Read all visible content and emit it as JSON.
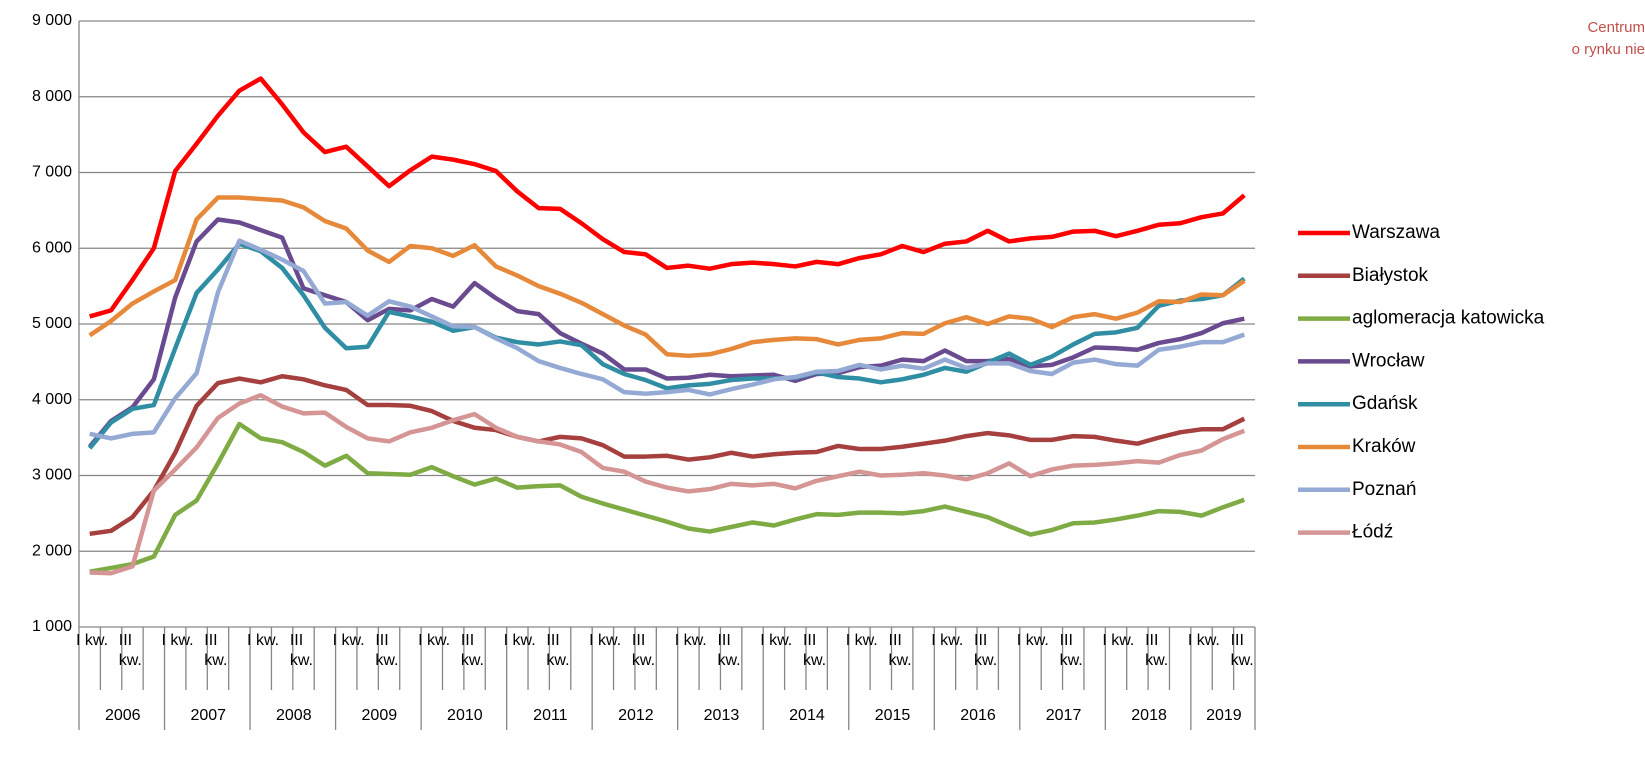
{
  "chart_data": {
    "type": "line",
    "categories": [
      "I kw.",
      null,
      "III kw.",
      null,
      "I kw.",
      null,
      "III kw.",
      null,
      "I kw.",
      null,
      "III kw.",
      null,
      "I kw.",
      null,
      "III kw.",
      null,
      "I kw.",
      null,
      "III kw.",
      null,
      "I kw.",
      null,
      "III kw.",
      null,
      "I kw.",
      null,
      "III kw.",
      null,
      "I kw.",
      null,
      "III kw.",
      null,
      "I kw.",
      null,
      "III kw.",
      null,
      "I kw.",
      null,
      "III kw.",
      null,
      "I kw.",
      null,
      "III kw.",
      null,
      "I kw.",
      null,
      "III kw.",
      null,
      "I kw.",
      null,
      "III kw.",
      null,
      "I kw.",
      null,
      "III kw."
    ],
    "years": [
      "2006",
      "2007",
      "2008",
      "2009",
      "2010",
      "2011",
      "2012",
      "2013",
      "2014",
      "2015",
      "2016",
      "2017",
      "2018",
      "2019"
    ],
    "ylim": [
      1000,
      9000
    ],
    "yticks": [
      {
        "value": 1000,
        "label": "1 000"
      },
      {
        "value": 2000,
        "label": "2 000"
      },
      {
        "value": 3000,
        "label": "3 000"
      },
      {
        "value": 4000,
        "label": "4 000"
      },
      {
        "value": 5000,
        "label": "5 000"
      },
      {
        "value": 6000,
        "label": "6 000"
      },
      {
        "value": 7000,
        "label": "7 000"
      },
      {
        "value": 8000,
        "label": "8 000"
      },
      {
        "value": 9000,
        "label": "9 000"
      }
    ],
    "grid": true,
    "legend": "right",
    "series": [
      {
        "name": "Warszawa",
        "color": "#ff0000",
        "values": [
          5100,
          5180,
          5580,
          6000,
          7020,
          7380,
          7750,
          8080,
          8240,
          7900,
          7530,
          7270,
          7340,
          7080,
          6820,
          7030,
          7210,
          7170,
          7110,
          7020,
          6750,
          6530,
          6520,
          6330,
          6120,
          5950,
          5920,
          5740,
          5770,
          5730,
          5790,
          5810,
          5790,
          5760,
          5820,
          5790,
          5870,
          5920,
          6030,
          5950,
          6060,
          6090,
          6230,
          6090,
          6130,
          6150,
          6220,
          6230,
          6160,
          6230,
          6310,
          6330,
          6410,
          6460,
          6700
        ]
      },
      {
        "name": "Białystok",
        "color": "#a5403e",
        "values": [
          2230,
          2270,
          2450,
          2800,
          3300,
          3920,
          4220,
          4280,
          4230,
          4310,
          4270,
          4190,
          4130,
          3930,
          3930,
          3920,
          3850,
          3720,
          3630,
          3600,
          3510,
          3450,
          3510,
          3490,
          3400,
          3250,
          3250,
          3260,
          3210,
          3240,
          3300,
          3250,
          3280,
          3300,
          3310,
          3390,
          3350,
          3350,
          3380,
          3420,
          3460,
          3520,
          3560,
          3530,
          3470,
          3470,
          3520,
          3510,
          3460,
          3420,
          3500,
          3570,
          3610,
          3610,
          3750
        ]
      },
      {
        "name": "aglomeracja katowicka",
        "color": "#7fab45",
        "values": [
          1730,
          1780,
          1830,
          1930,
          2480,
          2670,
          3160,
          3680,
          3490,
          3440,
          3310,
          3130,
          3260,
          3030,
          3020,
          3010,
          3110,
          2990,
          2880,
          2960,
          2840,
          2860,
          2870,
          2720,
          2630,
          2550,
          2470,
          2390,
          2300,
          2260,
          2320,
          2380,
          2340,
          2420,
          2490,
          2480,
          2510,
          2510,
          2500,
          2530,
          2590,
          2520,
          2450,
          2330,
          2220,
          2280,
          2370,
          2380,
          2420,
          2470,
          2530,
          2520,
          2470,
          2580,
          2680
        ]
      },
      {
        "name": "Wrocław",
        "color": "#6a4b8f",
        "values": [
          3380,
          3720,
          3900,
          4270,
          5350,
          6090,
          6380,
          6340,
          6240,
          6140,
          5470,
          5380,
          5290,
          5050,
          5200,
          5180,
          5330,
          5230,
          5540,
          5340,
          5170,
          5130,
          4880,
          4740,
          4610,
          4400,
          4400,
          4280,
          4290,
          4330,
          4310,
          4320,
          4330,
          4250,
          4340,
          4350,
          4430,
          4450,
          4530,
          4510,
          4650,
          4510,
          4510,
          4540,
          4440,
          4460,
          4560,
          4690,
          4680,
          4660,
          4750,
          4800,
          4880,
          5010,
          5070
        ]
      },
      {
        "name": "Gdańsk",
        "color": "#2f8ea3",
        "values": [
          3360,
          3700,
          3880,
          3930,
          4680,
          5410,
          5720,
          6060,
          5960,
          5740,
          5380,
          4950,
          4680,
          4700,
          5160,
          5100,
          5030,
          4910,
          4960,
          4820,
          4760,
          4730,
          4770,
          4720,
          4470,
          4340,
          4260,
          4150,
          4190,
          4210,
          4260,
          4280,
          4280,
          4290,
          4360,
          4300,
          4280,
          4230,
          4270,
          4330,
          4420,
          4370,
          4490,
          4610,
          4460,
          4570,
          4730,
          4870,
          4890,
          4950,
          5240,
          5310,
          5330,
          5380,
          5600
        ]
      },
      {
        "name": "Kraków",
        "color": "#e6893a",
        "values": [
          4850,
          5040,
          5270,
          5430,
          5580,
          6380,
          6670,
          6670,
          6650,
          6630,
          6540,
          6360,
          6260,
          5970,
          5820,
          6030,
          6000,
          5900,
          6040,
          5760,
          5640,
          5500,
          5400,
          5280,
          5130,
          4980,
          4860,
          4600,
          4580,
          4600,
          4670,
          4760,
          4790,
          4810,
          4800,
          4730,
          4790,
          4810,
          4880,
          4870,
          5010,
          5090,
          5000,
          5100,
          5070,
          4960,
          5090,
          5130,
          5070,
          5150,
          5300,
          5290,
          5390,
          5380,
          5570
        ]
      },
      {
        "name": "Poznań",
        "color": "#94a9d3",
        "values": [
          3550,
          3490,
          3550,
          3570,
          4020,
          4350,
          5420,
          6100,
          5980,
          5850,
          5700,
          5270,
          5290,
          5110,
          5300,
          5230,
          5100,
          4970,
          4960,
          4810,
          4680,
          4510,
          4420,
          4340,
          4270,
          4100,
          4080,
          4100,
          4130,
          4070,
          4140,
          4200,
          4270,
          4300,
          4370,
          4380,
          4460,
          4400,
          4450,
          4410,
          4530,
          4420,
          4480,
          4480,
          4380,
          4340,
          4490,
          4530,
          4470,
          4450,
          4660,
          4700,
          4760,
          4760,
          4860
        ]
      },
      {
        "name": "Łódź",
        "color": "#d49594",
        "values": [
          1720,
          1710,
          1800,
          2800,
          3080,
          3370,
          3760,
          3950,
          4060,
          3910,
          3820,
          3830,
          3640,
          3490,
          3450,
          3570,
          3630,
          3730,
          3810,
          3630,
          3510,
          3450,
          3410,
          3310,
          3100,
          3050,
          2920,
          2840,
          2790,
          2820,
          2890,
          2870,
          2890,
          2830,
          2930,
          2990,
          3050,
          3000,
          3010,
          3030,
          3000,
          2950,
          3030,
          3160,
          2990,
          3080,
          3130,
          3140,
          3160,
          3190,
          3170,
          3270,
          3330,
          3480,
          3590
        ]
      }
    ]
  },
  "logo": [
    "Centrum",
    "o rynku nie"
  ]
}
